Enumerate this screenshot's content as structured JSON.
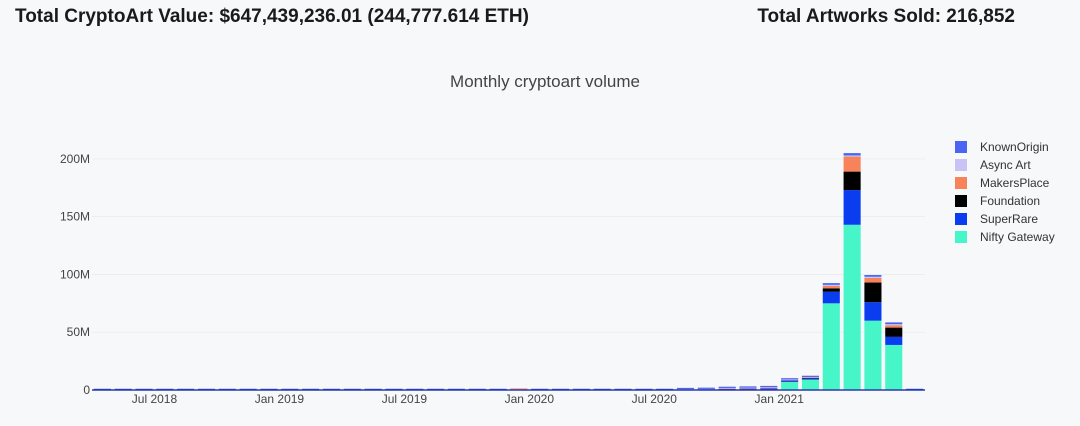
{
  "header": {
    "total_value": "Total CryptoArt Value: $647,439,236.01 (244,777.614 ETH)",
    "total_sold": "Total Artworks Sold: 216,852"
  },
  "chart_data": {
    "type": "bar",
    "stacked": true,
    "title": "Monthly cryptoart volume",
    "xlabel": "",
    "ylabel": "",
    "ylim": [
      0,
      225000000
    ],
    "yticks": [
      0,
      50000000,
      100000000,
      150000000,
      200000000
    ],
    "ytick_labels": [
      "0",
      "50M",
      "100M",
      "150M",
      "200M"
    ],
    "xtick_labels": [
      "Jul 2018",
      "Jan 2019",
      "Jul 2019",
      "Jan 2020",
      "Jul 2020",
      "Jan 2021"
    ],
    "xtick_indices": [
      3,
      9,
      15,
      21,
      27,
      33
    ],
    "grid": true,
    "legend_position": "right",
    "categories": [
      "2018-04",
      "2018-05",
      "2018-06",
      "2018-07",
      "2018-08",
      "2018-09",
      "2018-10",
      "2018-11",
      "2018-12",
      "2019-01",
      "2019-02",
      "2019-03",
      "2019-04",
      "2019-05",
      "2019-06",
      "2019-07",
      "2019-08",
      "2019-09",
      "2019-10",
      "2019-11",
      "2019-12",
      "2020-01",
      "2020-02",
      "2020-03",
      "2020-04",
      "2020-05",
      "2020-06",
      "2020-07",
      "2020-08",
      "2020-09",
      "2020-10",
      "2020-11",
      "2020-12",
      "2021-01",
      "2021-02",
      "2021-03",
      "2021-04",
      "2021-05",
      "2021-06",
      "2021-07"
    ],
    "series": [
      {
        "name": "Nifty Gateway",
        "color": "#46f5c8",
        "values": [
          0,
          0,
          0,
          0,
          0,
          0,
          0,
          0,
          0,
          0,
          0,
          0,
          0,
          0,
          0,
          0,
          0,
          0,
          0,
          0,
          0,
          0,
          0,
          0,
          0,
          0,
          0,
          0,
          0,
          0,
          0,
          0,
          0,
          7000000,
          9000000,
          75000000,
          143000000,
          60000000,
          39000000,
          0
        ]
      },
      {
        "name": "SuperRare",
        "color": "#0a3cf0",
        "values": [
          500000,
          400000,
          300000,
          200000,
          600000,
          300000,
          200000,
          200000,
          200000,
          300000,
          300000,
          300000,
          400000,
          400000,
          400000,
          300000,
          400000,
          300000,
          300000,
          300000,
          300000,
          300000,
          300000,
          300000,
          300000,
          300000,
          300000,
          400000,
          500000,
          600000,
          1000000,
          1200000,
          1500000,
          1200000,
          1000000,
          10000000,
          30000000,
          16000000,
          7000000,
          700000
        ]
      },
      {
        "name": "Foundation",
        "color": "#000000",
        "values": [
          0,
          0,
          0,
          0,
          0,
          0,
          0,
          0,
          0,
          0,
          0,
          0,
          0,
          0,
          0,
          0,
          0,
          0,
          0,
          0,
          0,
          0,
          0,
          0,
          0,
          0,
          0,
          0,
          0,
          0,
          0,
          0,
          0,
          0,
          300000,
          3000000,
          16000000,
          17000000,
          8000000,
          0
        ]
      },
      {
        "name": "MakersPlace",
        "color": "#f7835a",
        "values": [
          0,
          0,
          0,
          0,
          0,
          0,
          0,
          0,
          0,
          0,
          0,
          0,
          0,
          0,
          0,
          0,
          0,
          0,
          0,
          0,
          300000,
          0,
          0,
          0,
          0,
          0,
          0,
          0,
          0,
          0,
          300000,
          400000,
          400000,
          400000,
          500000,
          2000000,
          13000000,
          4000000,
          2000000,
          0
        ]
      },
      {
        "name": "Async Art",
        "color": "#c9c2f5",
        "values": [
          0,
          0,
          0,
          0,
          0,
          0,
          0,
          0,
          0,
          0,
          0,
          0,
          0,
          0,
          0,
          0,
          0,
          0,
          0,
          0,
          0,
          0,
          0,
          0,
          0,
          0,
          0,
          0,
          300000,
          400000,
          500000,
          500000,
          600000,
          600000,
          500000,
          1000000,
          1000000,
          1000000,
          1000000,
          0
        ]
      },
      {
        "name": "KnownOrigin",
        "color": "#4965f2",
        "values": [
          0,
          0,
          0,
          0,
          0,
          0,
          0,
          0,
          0,
          0,
          0,
          0,
          0,
          0,
          0,
          0,
          0,
          0,
          0,
          0,
          0,
          0,
          0,
          0,
          0,
          0,
          0,
          0,
          200000,
          300000,
          500000,
          800000,
          800000,
          400000,
          500000,
          1500000,
          2000000,
          1500000,
          1500000,
          0
        ]
      }
    ]
  }
}
